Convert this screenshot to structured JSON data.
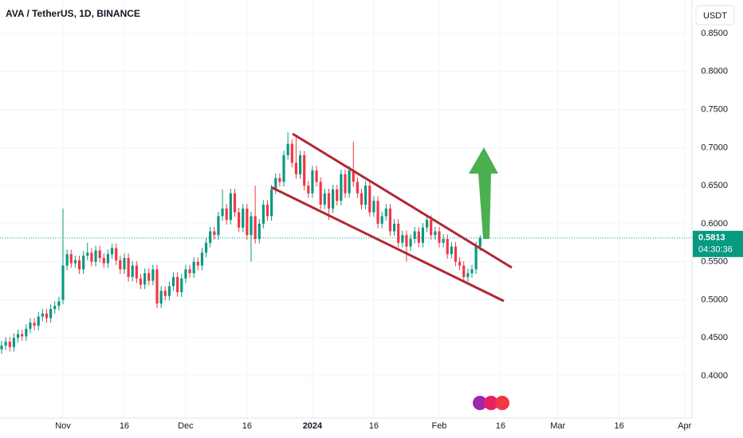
{
  "chart_data": {
    "type": "candlestick",
    "title": "AVA / TetherUS, 1D, BINANCE",
    "currency": "USDT",
    "up_color": "#089981",
    "down_color": "#f23645",
    "grid": true,
    "xlim": [
      -0.4,
      168.8
    ],
    "xticks": [
      {
        "value": 15,
        "label": "Nov"
      },
      {
        "value": 30,
        "label": "16"
      },
      {
        "value": 45,
        "label": "Dec"
      },
      {
        "value": 60,
        "label": "16"
      },
      {
        "value": 76,
        "label": "2024"
      },
      {
        "value": 91,
        "label": "16"
      },
      {
        "value": 107,
        "label": "Feb"
      },
      {
        "value": 122,
        "label": "16"
      },
      {
        "value": 136,
        "label": "Mar"
      },
      {
        "value": 151,
        "label": "16"
      },
      {
        "value": 167,
        "label": "Apr"
      }
    ],
    "ylim": [
      0.3446,
      0.894
    ],
    "yticks": [
      {
        "value": 0.4,
        "label": "0.4000"
      },
      {
        "value": 0.45,
        "label": "0.4500"
      },
      {
        "value": 0.5,
        "label": "0.5000"
      },
      {
        "value": 0.55,
        "label": "0.5500"
      },
      {
        "value": 0.6,
        "label": "0.6000"
      },
      {
        "value": 0.65,
        "label": "0.6500"
      },
      {
        "value": 0.7,
        "label": "0.7000"
      },
      {
        "value": 0.75,
        "label": "0.7500"
      },
      {
        "value": 0.8,
        "label": "0.8000"
      },
      {
        "value": 0.85,
        "label": "0.8500"
      }
    ],
    "countdown": "04:30:36",
    "open": [
      0.435,
      0.44,
      0.445,
      0.438,
      0.45,
      0.455,
      0.452,
      0.462,
      0.47,
      0.466,
      0.478,
      0.482,
      0.476,
      0.488,
      0.492,
      0.5,
      0.545,
      0.56,
      0.548,
      0.552,
      0.54,
      0.558,
      0.562,
      0.55,
      0.565,
      0.555,
      0.548,
      0.56,
      0.568,
      0.552,
      0.54,
      0.555,
      0.53,
      0.545,
      0.528,
      0.52,
      0.535,
      0.525,
      0.54,
      0.495,
      0.512,
      0.505,
      0.518,
      0.53,
      0.51,
      0.528,
      0.54,
      0.535,
      0.55,
      0.545,
      0.562,
      0.575,
      0.59,
      0.585,
      0.61,
      0.62,
      0.605,
      0.64,
      0.615,
      0.595,
      0.62,
      0.585,
      0.61,
      0.58,
      0.6,
      0.625,
      0.61,
      0.645,
      0.66,
      0.655,
      0.69,
      0.705,
      0.68,
      0.665,
      0.69,
      0.65,
      0.64,
      0.67,
      0.655,
      0.625,
      0.64,
      0.62,
      0.645,
      0.63,
      0.665,
      0.64,
      0.67,
      0.655,
      0.64,
      0.625,
      0.65,
      0.615,
      0.63,
      0.6,
      0.61,
      0.62,
      0.59,
      0.6,
      0.575,
      0.585,
      0.57,
      0.58,
      0.59,
      0.575,
      0.595,
      0.605,
      0.585,
      0.59,
      0.575,
      0.58,
      0.56,
      0.57,
      0.55,
      0.545,
      0.53,
      0.535,
      0.54,
      0.57
    ],
    "high": [
      0.446,
      0.451,
      0.451,
      0.456,
      0.461,
      0.461,
      0.468,
      0.476,
      0.476,
      0.484,
      0.488,
      0.488,
      0.494,
      0.498,
      0.504,
      0.62,
      0.566,
      0.566,
      0.558,
      0.558,
      0.564,
      0.575,
      0.568,
      0.571,
      0.571,
      0.561,
      0.566,
      0.574,
      0.574,
      0.558,
      0.561,
      0.561,
      0.551,
      0.551,
      0.534,
      0.541,
      0.541,
      0.546,
      0.546,
      0.518,
      0.518,
      0.524,
      0.536,
      0.536,
      0.534,
      0.546,
      0.546,
      0.556,
      0.556,
      0.568,
      0.581,
      0.596,
      0.596,
      0.616,
      0.645,
      0.626,
      0.646,
      0.646,
      0.621,
      0.626,
      0.626,
      0.616,
      0.65,
      0.606,
      0.631,
      0.631,
      0.651,
      0.666,
      0.666,
      0.696,
      0.72,
      0.711,
      0.715,
      0.696,
      0.696,
      0.656,
      0.676,
      0.676,
      0.661,
      0.646,
      0.646,
      0.651,
      0.651,
      0.671,
      0.671,
      0.676,
      0.708,
      0.661,
      0.646,
      0.656,
      0.656,
      0.636,
      0.636,
      0.616,
      0.626,
      0.626,
      0.606,
      0.606,
      0.591,
      0.591,
      0.586,
      0.596,
      0.596,
      0.601,
      0.611,
      0.611,
      0.596,
      0.596,
      0.586,
      0.586,
      0.576,
      0.576,
      0.556,
      0.551,
      0.541,
      0.546,
      0.576,
      0.585
    ],
    "low": [
      0.429,
      0.434,
      0.432,
      0.432,
      0.444,
      0.446,
      0.446,
      0.456,
      0.46,
      0.46,
      0.472,
      0.47,
      0.47,
      0.482,
      0.486,
      0.494,
      0.539,
      0.542,
      0.542,
      0.534,
      0.534,
      0.552,
      0.544,
      0.544,
      0.549,
      0.542,
      0.542,
      0.554,
      0.546,
      0.534,
      0.534,
      0.524,
      0.524,
      0.522,
      0.514,
      0.514,
      0.519,
      0.519,
      0.489,
      0.489,
      0.499,
      0.499,
      0.512,
      0.504,
      0.504,
      0.522,
      0.529,
      0.529,
      0.539,
      0.539,
      0.556,
      0.569,
      0.579,
      0.579,
      0.604,
      0.599,
      0.599,
      0.609,
      0.589,
      0.589,
      0.579,
      0.55,
      0.574,
      0.574,
      0.594,
      0.604,
      0.604,
      0.639,
      0.649,
      0.649,
      0.684,
      0.674,
      0.659,
      0.659,
      0.644,
      0.634,
      0.634,
      0.649,
      0.619,
      0.619,
      0.605,
      0.614,
      0.624,
      0.624,
      0.634,
      0.634,
      0.649,
      0.634,
      0.619,
      0.619,
      0.609,
      0.609,
      0.594,
      0.594,
      0.604,
      0.584,
      0.584,
      0.569,
      0.569,
      0.55,
      0.564,
      0.574,
      0.569,
      0.569,
      0.589,
      0.579,
      0.579,
      0.569,
      0.569,
      0.554,
      0.554,
      0.544,
      0.539,
      0.524,
      0.524,
      0.529,
      0.534,
      0.564
    ],
    "close": [
      0.44,
      0.445,
      0.438,
      0.45,
      0.455,
      0.452,
      0.462,
      0.47,
      0.466,
      0.478,
      0.482,
      0.476,
      0.488,
      0.492,
      0.498,
      0.545,
      0.56,
      0.548,
      0.552,
      0.54,
      0.558,
      0.562,
      0.55,
      0.565,
      0.555,
      0.548,
      0.56,
      0.568,
      0.552,
      0.54,
      0.555,
      0.53,
      0.545,
      0.528,
      0.52,
      0.535,
      0.525,
      0.54,
      0.495,
      0.512,
      0.505,
      0.518,
      0.53,
      0.51,
      0.528,
      0.54,
      0.535,
      0.55,
      0.545,
      0.562,
      0.575,
      0.59,
      0.585,
      0.61,
      0.62,
      0.605,
      0.64,
      0.615,
      0.595,
      0.62,
      0.585,
      0.61,
      0.58,
      0.6,
      0.625,
      0.61,
      0.645,
      0.66,
      0.655,
      0.69,
      0.705,
      0.68,
      0.665,
      0.69,
      0.65,
      0.64,
      0.67,
      0.655,
      0.625,
      0.64,
      0.62,
      0.645,
      0.63,
      0.665,
      0.64,
      0.67,
      0.655,
      0.64,
      0.625,
      0.65,
      0.615,
      0.63,
      0.6,
      0.61,
      0.62,
      0.59,
      0.6,
      0.575,
      0.585,
      0.57,
      0.58,
      0.59,
      0.575,
      0.595,
      0.605,
      0.585,
      0.59,
      0.575,
      0.58,
      0.56,
      0.57,
      0.55,
      0.545,
      0.53,
      0.535,
      0.54,
      0.57,
      0.5813
    ]
  }
}
